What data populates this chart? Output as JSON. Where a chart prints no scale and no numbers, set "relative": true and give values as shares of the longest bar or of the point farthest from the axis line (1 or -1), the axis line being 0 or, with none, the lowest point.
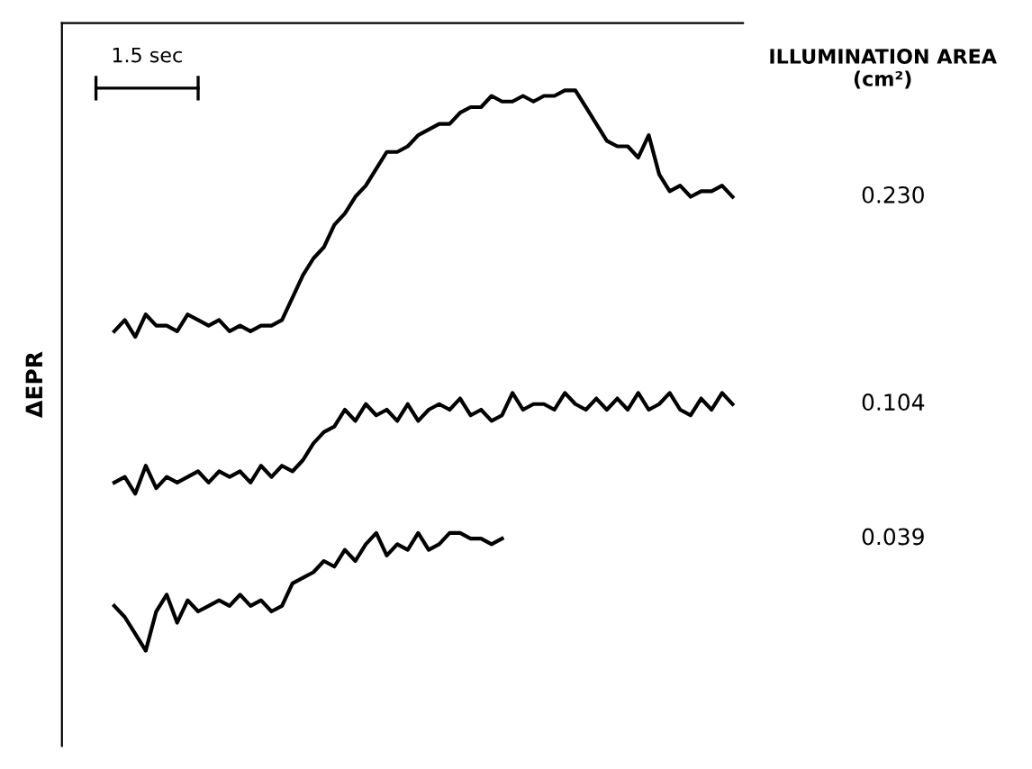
{
  "chart_data": {
    "type": "line",
    "relative": true,
    "ylabel": "ΔEPR",
    "legend_title": "ILLUMINATION AREA\n(cm²)",
    "annotations": [
      "1.5 sec"
    ],
    "categories": [
      null,
      null,
      null,
      null,
      null,
      null,
      null,
      null,
      null,
      null,
      null,
      null,
      null,
      null,
      null,
      null,
      null,
      null,
      null,
      null,
      null,
      null,
      null,
      null,
      null,
      null,
      null,
      null,
      null,
      null,
      null,
      null,
      null,
      null,
      null,
      null,
      null,
      null,
      null,
      null,
      null,
      null,
      null,
      null,
      null,
      null,
      null,
      null,
      null,
      null,
      null,
      null,
      null,
      null,
      null,
      null,
      null,
      null,
      null,
      null
    ],
    "series": [
      {
        "name": "0.230",
        "color": "#000000",
        "values": [
          0.57,
          0.59,
          0.56,
          0.6,
          0.58,
          0.58,
          0.57,
          0.6,
          0.59,
          0.58,
          0.59,
          0.57,
          0.58,
          0.57,
          0.58,
          0.58,
          0.59,
          0.63,
          0.67,
          0.7,
          0.72,
          0.76,
          0.78,
          0.81,
          0.83,
          0.86,
          0.89,
          0.89,
          0.9,
          0.92,
          0.93,
          0.94,
          0.94,
          0.96,
          0.97,
          0.97,
          0.99,
          0.98,
          0.98,
          0.99,
          0.98,
          0.99,
          0.99,
          1.0,
          1.0,
          0.97,
          0.94,
          0.91,
          0.9,
          0.9,
          0.88,
          0.92,
          0.85,
          0.82,
          0.83,
          0.81,
          0.82,
          0.82,
          0.83,
          0.81
        ]
      },
      {
        "name": "0.104",
        "color": "#000000",
        "values": [
          0.3,
          0.31,
          0.28,
          0.33,
          0.29,
          0.31,
          0.3,
          0.31,
          0.32,
          0.3,
          0.32,
          0.31,
          0.32,
          0.3,
          0.33,
          0.31,
          0.33,
          0.32,
          0.34,
          0.37,
          0.39,
          0.4,
          0.43,
          0.41,
          0.44,
          0.42,
          0.43,
          0.41,
          0.44,
          0.41,
          0.43,
          0.44,
          0.43,
          0.45,
          0.42,
          0.43,
          0.41,
          0.42,
          0.46,
          0.43,
          0.44,
          0.44,
          0.43,
          0.46,
          0.44,
          0.43,
          0.45,
          0.43,
          0.45,
          0.43,
          0.46,
          0.43,
          0.44,
          0.46,
          0.43,
          0.42,
          0.45,
          0.43,
          0.46,
          0.44
        ]
      },
      {
        "name": "0.039",
        "color": "#000000",
        "values": [
          0.08,
          0.06,
          0.03,
          0.0,
          0.07,
          0.1,
          0.05,
          0.09,
          0.07,
          0.08,
          0.09,
          0.08,
          0.1,
          0.08,
          0.09,
          0.07,
          0.08,
          0.12,
          0.13,
          0.14,
          0.16,
          0.15,
          0.18,
          0.16,
          0.19,
          0.21,
          0.17,
          0.19,
          0.18,
          0.21,
          0.18,
          0.19,
          0.21,
          0.21,
          0.2,
          0.2,
          0.19,
          0.2,
          null,
          null,
          null,
          null,
          null,
          null,
          null,
          null,
          null,
          null,
          null,
          null,
          null,
          null,
          null,
          null,
          null,
          null,
          null,
          null,
          null,
          null
        ]
      }
    ],
    "legend": false,
    "line_style": "solid",
    "marker": "none"
  }
}
